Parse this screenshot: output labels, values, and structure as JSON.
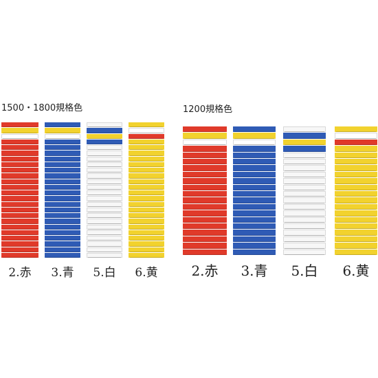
{
  "groups": [
    {
      "id": "standard-long",
      "title": "1500・1800規格色",
      "mats": [
        {
          "caption": "2.赤",
          "body_color": "#e03a2a",
          "accents": [
            "#e03a2a",
            "#f2d22e",
            "#ffffff",
            "#e03a2a"
          ]
        },
        {
          "caption": "3.青",
          "body_color": "#2f5bb5",
          "accents": [
            "#2f5bb5",
            "#f2d22e",
            "#ffffff",
            "#2f5bb5"
          ]
        },
        {
          "caption": "5.白",
          "body_color": "#f7f7f7",
          "accents": [
            "#f7f7f7",
            "#2f5bb5",
            "#f2d22e",
            "#2f5bb5"
          ]
        },
        {
          "caption": "6.黄",
          "body_color": "#f2d22e",
          "accents": [
            "#f2d22e",
            "#ffffff",
            "#e03a2a",
            "#f2d22e"
          ]
        }
      ]
    },
    {
      "id": "standard-1200",
      "title": "1200規格色",
      "mats": [
        {
          "caption": "2.赤",
          "body_color": "#e03a2a",
          "accents": [
            "#e03a2a",
            "#f2d22e",
            "#ffffff",
            "#e03a2a"
          ]
        },
        {
          "caption": "3.青",
          "body_color": "#2f5bb5",
          "accents": [
            "#2f5bb5",
            "#f2d22e",
            "#ffffff",
            "#2f5bb5"
          ]
        },
        {
          "caption": "5.白",
          "body_color": "#f7f7f7",
          "accents": [
            "#f7f7f7",
            "#2f5bb5",
            "#f2d22e",
            "#2f5bb5"
          ]
        },
        {
          "caption": "6.黄",
          "body_color": "#f2d22e",
          "accents": [
            "#f2d22e",
            "#ffffff",
            "#e03a2a",
            "#f2d22e"
          ]
        }
      ]
    }
  ]
}
